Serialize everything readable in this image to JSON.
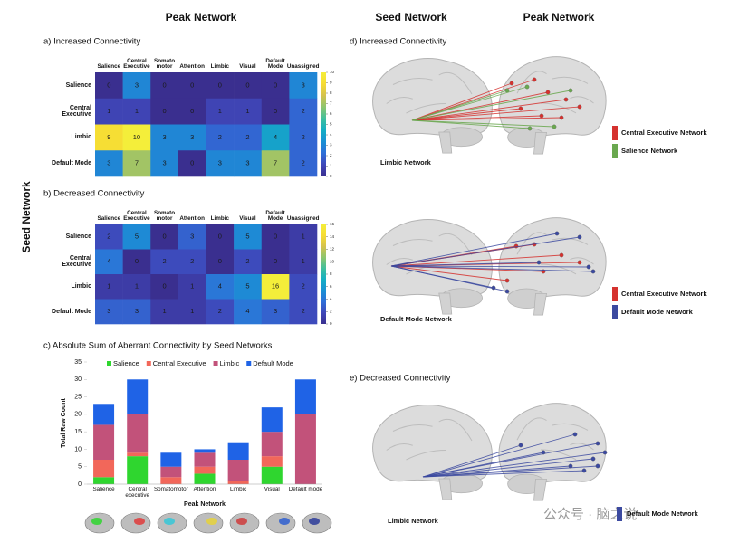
{
  "headers": {
    "left_peak": "Peak Network",
    "left_seed": "Seed Network",
    "right_seed": "Seed Network",
    "right_peak": "Peak Network"
  },
  "chart_data": [
    {
      "type": "heatmap",
      "title": "a) Increased Connectivity",
      "columns": [
        "Salience",
        "Central Executive",
        "Somato motor",
        "Attention",
        "Limbic",
        "Visual",
        "Default Mode",
        "Unassigned"
      ],
      "rows": [
        "Salience",
        "Central Executive",
        "Limbic",
        "Default Mode"
      ],
      "values": [
        [
          0,
          3,
          0,
          0,
          0,
          0,
          0,
          3
        ],
        [
          1,
          1,
          0,
          0,
          1,
          1,
          0,
          2
        ],
        [
          9,
          10,
          3,
          3,
          2,
          2,
          4,
          2
        ],
        [
          3,
          7,
          3,
          0,
          3,
          3,
          7,
          2
        ]
      ],
      "zlim": [
        0,
        10
      ],
      "zticks": [
        0,
        1,
        2,
        3,
        4,
        5,
        6,
        7,
        8,
        9,
        10
      ],
      "colormap": [
        "#3a2f8f",
        "#3f46b8",
        "#2f6ed8",
        "#1a90d4",
        "#14aec4",
        "#3fbf9e",
        "#8cc56f",
        "#d4c24e",
        "#f6dc33",
        "#f4ee3a"
      ]
    },
    {
      "type": "heatmap",
      "title": "b) Decreased Connectivity",
      "columns": [
        "Salience",
        "Central Executive",
        "Somato motor",
        "Attention",
        "Limbic",
        "Visual",
        "Default Mode",
        "Unassigned"
      ],
      "rows": [
        "Salience",
        "Central Executive",
        "Limbic",
        "Default Mode"
      ],
      "values": [
        [
          2,
          5,
          0,
          3,
          0,
          5,
          0,
          1
        ],
        [
          4,
          0,
          2,
          2,
          0,
          2,
          0,
          1
        ],
        [
          1,
          1,
          0,
          1,
          4,
          5,
          16,
          2
        ],
        [
          3,
          3,
          1,
          1,
          2,
          4,
          3,
          2
        ]
      ],
      "zlim": [
        0,
        16
      ],
      "zticks": [
        0,
        2,
        4,
        6,
        8,
        10,
        12,
        14,
        16
      ],
      "colormap": [
        "#3a2f8f",
        "#3f46b8",
        "#2f6ed8",
        "#1a90d4",
        "#14aec4",
        "#3fbf9e",
        "#8cc56f",
        "#d4c24e",
        "#f6dc33",
        "#f4ee3a"
      ]
    },
    {
      "type": "stacked_bar",
      "title": "c) Absolute Sum of Aberrant Connectivity by Seed Networks",
      "x_label": "Peak Network",
      "y_label": "Total Raw Count",
      "categories": [
        "Salience",
        "Central executive",
        "Somatomotor",
        "Attention",
        "Limbic",
        "Visual",
        "Default mode"
      ],
      "series": [
        {
          "name": "Salience",
          "color": "#2fd62f",
          "values": [
            2,
            8,
            0,
            3,
            0,
            5,
            0
          ]
        },
        {
          "name": "Central Executive",
          "color": "#f2675a",
          "values": [
            5,
            1,
            2,
            2,
            1,
            3,
            0
          ]
        },
        {
          "name": "Limbic",
          "color": "#c2527a",
          "values": [
            10,
            11,
            3,
            4,
            6,
            7,
            20
          ]
        },
        {
          "name": "Default Mode",
          "color": "#1f63e6",
          "values": [
            6,
            10,
            4,
            1,
            5,
            7,
            10
          ]
        }
      ],
      "ylim": [
        0,
        35
      ],
      "yticks": [
        0,
        5,
        10,
        15,
        20,
        25,
        30,
        35
      ],
      "grid": false
    }
  ],
  "panels": [
    {
      "title": "d) Increased Connectivity",
      "seed": "Limbic Network",
      "legend": [
        {
          "name": "Central Executive Network",
          "color": "#d5322f"
        },
        {
          "name": "Salience Network",
          "color": "#6aa84f"
        }
      ]
    },
    {
      "seed": "Default Mode Network",
      "legend": [
        {
          "name": "Central Executive Network",
          "color": "#d5322f"
        },
        {
          "name": "Default Mode Network",
          "color": "#3c4aa0"
        }
      ]
    },
    {
      "title": "e) Decreased Connectivity",
      "seed": "Limbic Network",
      "legend": [
        {
          "name": "Default Mode Network",
          "color": "#3c4aa0"
        }
      ]
    }
  ],
  "watermark": "公众号 · 脑之说"
}
